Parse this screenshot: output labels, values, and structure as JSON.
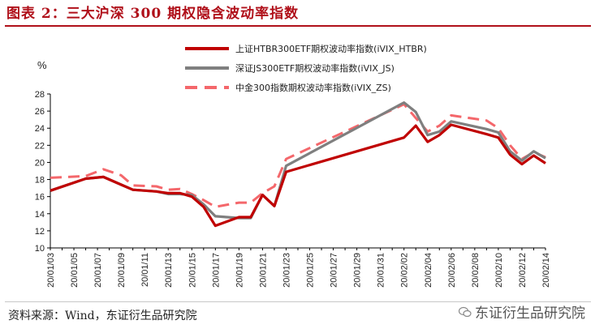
{
  "figure": {
    "title": "图表 2：三大沪深 300 期权隐含波动率指数",
    "source": "资料来源：Wind，东证衍生品研究院",
    "watermark": "东证衍生品研究院"
  },
  "colors": {
    "htbr": "#c00000",
    "js": "#7f7f7f",
    "zs": "#f4676b",
    "title": "#b0101a"
  },
  "chart_data": {
    "type": "line",
    "title": "",
    "ylabel": "%",
    "xlabel": "",
    "ylim": [
      10,
      28
    ],
    "yticks": [
      10,
      12,
      14,
      16,
      18,
      20,
      22,
      24,
      26,
      28
    ],
    "grid": false,
    "legend_position": "top",
    "x": [
      "20/01/03",
      "20/01/05",
      "20/01/07",
      "20/01/09",
      "20/01/11",
      "20/01/13",
      "20/01/15",
      "20/01/17",
      "20/01/19",
      "20/01/21",
      "20/01/23",
      "20/01/25",
      "20/01/27",
      "20/01/29",
      "20/01/31",
      "20/02/02",
      "20/02/04",
      "20/02/06",
      "20/02/08",
      "20/02/10",
      "20/02/12",
      "20/02/14"
    ],
    "x_positions": [
      0,
      2,
      4,
      6,
      8,
      10,
      12,
      14,
      16,
      18,
      20,
      22,
      24,
      26,
      28,
      30,
      32,
      34,
      36,
      38,
      40,
      42
    ],
    "series": [
      {
        "name": "上证HTBR300ETF期权波动率指数(iVIX_HTBR)",
        "style": "solid",
        "color_key": "htbr",
        "points": [
          [
            0,
            16.7
          ],
          [
            3,
            18.1
          ],
          [
            4.5,
            18.3
          ],
          [
            6,
            17.4
          ],
          [
            7,
            16.8
          ],
          [
            9,
            16.6
          ],
          [
            10,
            16.4
          ],
          [
            11,
            16.4
          ],
          [
            12,
            16.0
          ],
          [
            13,
            14.8
          ],
          [
            14,
            12.6
          ],
          [
            16,
            13.6
          ],
          [
            17,
            13.6
          ],
          [
            18,
            16.2
          ],
          [
            19,
            14.9
          ],
          [
            20,
            18.9
          ],
          [
            30,
            22.9
          ],
          [
            31,
            24.3
          ],
          [
            32,
            22.4
          ],
          [
            33,
            23.2
          ],
          [
            34,
            24.4
          ],
          [
            37,
            23.3
          ],
          [
            38,
            22.9
          ],
          [
            39,
            20.9
          ],
          [
            40,
            19.8
          ],
          [
            41,
            20.8
          ],
          [
            42,
            19.9
          ]
        ]
      },
      {
        "name": "深证JS300ETF期权波动率指数(iVIX_JS)",
        "style": "solid",
        "color_key": "js",
        "points": [
          [
            0,
            16.7
          ],
          [
            3,
            18.1
          ],
          [
            4.5,
            18.3
          ],
          [
            6,
            17.4
          ],
          [
            7,
            16.8
          ],
          [
            9,
            16.6
          ],
          [
            10,
            16.3
          ],
          [
            11,
            16.3
          ],
          [
            12,
            16.2
          ],
          [
            13,
            15.1
          ],
          [
            14,
            13.7
          ],
          [
            16,
            13.5
          ],
          [
            17,
            13.5
          ],
          [
            18,
            16.2
          ],
          [
            19,
            14.9
          ],
          [
            20,
            19.6
          ],
          [
            30,
            27.0
          ],
          [
            31,
            25.9
          ],
          [
            32,
            23.2
          ],
          [
            33,
            23.6
          ],
          [
            34,
            24.8
          ],
          [
            37,
            23.9
          ],
          [
            38,
            23.5
          ],
          [
            39,
            21.3
          ],
          [
            40,
            20.2
          ],
          [
            41,
            21.3
          ],
          [
            42,
            20.5
          ]
        ]
      },
      {
        "name": "中金300指数期权波动率指数(iVIX_ZS)",
        "style": "dashed",
        "color_key": "zs",
        "points": [
          [
            0,
            18.2
          ],
          [
            3,
            18.4
          ],
          [
            4.5,
            19.2
          ],
          [
            6,
            18.5
          ],
          [
            7,
            17.3
          ],
          [
            9,
            17.2
          ],
          [
            10,
            16.8
          ],
          [
            11,
            16.9
          ],
          [
            12,
            16.3
          ],
          [
            13,
            15.6
          ],
          [
            14,
            14.8
          ],
          [
            16,
            15.3
          ],
          [
            17,
            15.3
          ],
          [
            18,
            16.4
          ],
          [
            19,
            17.2
          ],
          [
            20,
            20.4
          ],
          [
            30,
            26.8
          ],
          [
            31,
            25.2
          ],
          [
            32,
            23.6
          ],
          [
            33,
            24.3
          ],
          [
            34,
            25.5
          ],
          [
            37,
            24.9
          ],
          [
            38,
            24.0
          ],
          [
            39,
            22.0
          ],
          [
            40,
            20.4
          ],
          [
            41,
            21.2
          ],
          [
            42,
            20.6
          ]
        ]
      }
    ]
  }
}
